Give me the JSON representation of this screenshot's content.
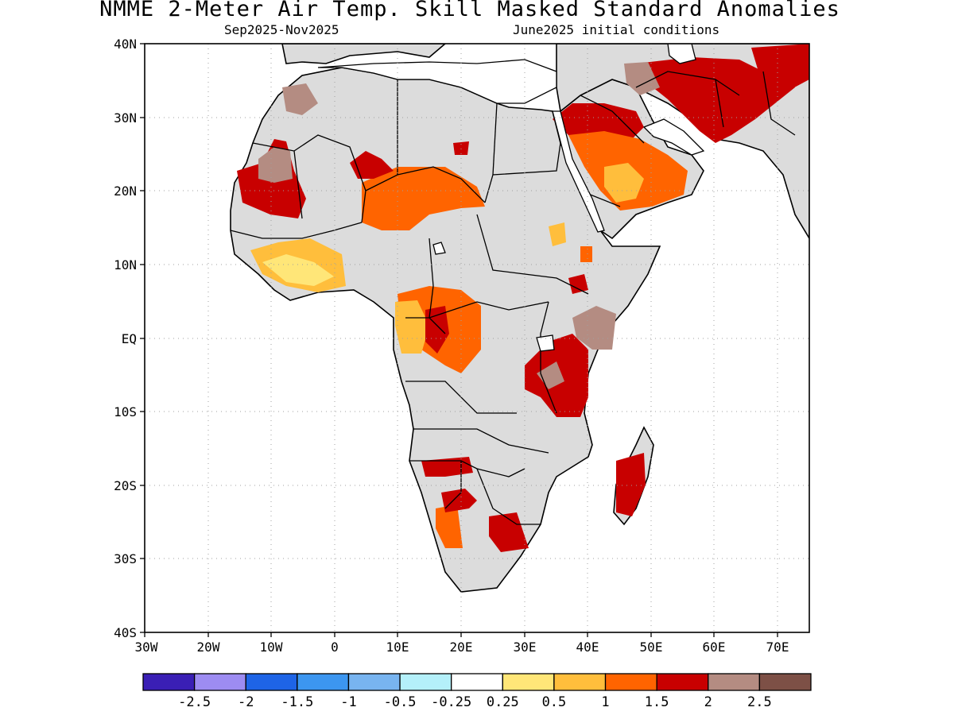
{
  "title": "NMME 2-Meter Air Temp. Skill Masked Standard Anomalies",
  "subtitle_left": "Sep2025-Nov2025",
  "subtitle_right": "June2025 initial conditions",
  "map": {
    "lon_range": [
      -30,
      75
    ],
    "lat_range": [
      -40,
      40
    ],
    "lat_ticks": [
      "40N",
      "30N",
      "20N",
      "10N",
      "EQ",
      "10S",
      "20S",
      "30S",
      "40S"
    ],
    "lon_ticks": [
      "30W",
      "20W",
      "10W",
      "0",
      "10E",
      "20E",
      "30E",
      "40E",
      "50E",
      "60E",
      "70E"
    ],
    "masked_color": "#dcdcdc",
    "grid": true
  },
  "colorbar": {
    "colors": [
      "#3a1fb5",
      "#9d8cf2",
      "#1e64e6",
      "#3c96f0",
      "#78b4f0",
      "#b4f0fa",
      "#ffffff",
      "#ffe678",
      "#ffbe3c",
      "#ff6400",
      "#c80000",
      "#b48c82",
      "#7d5046"
    ],
    "labels": [
      "-2.5",
      "-2",
      "-1.5",
      "-1",
      "-0.5",
      "-0.25",
      "0.25",
      "0.5",
      "1",
      "1.5",
      "2",
      "2.5"
    ]
  }
}
